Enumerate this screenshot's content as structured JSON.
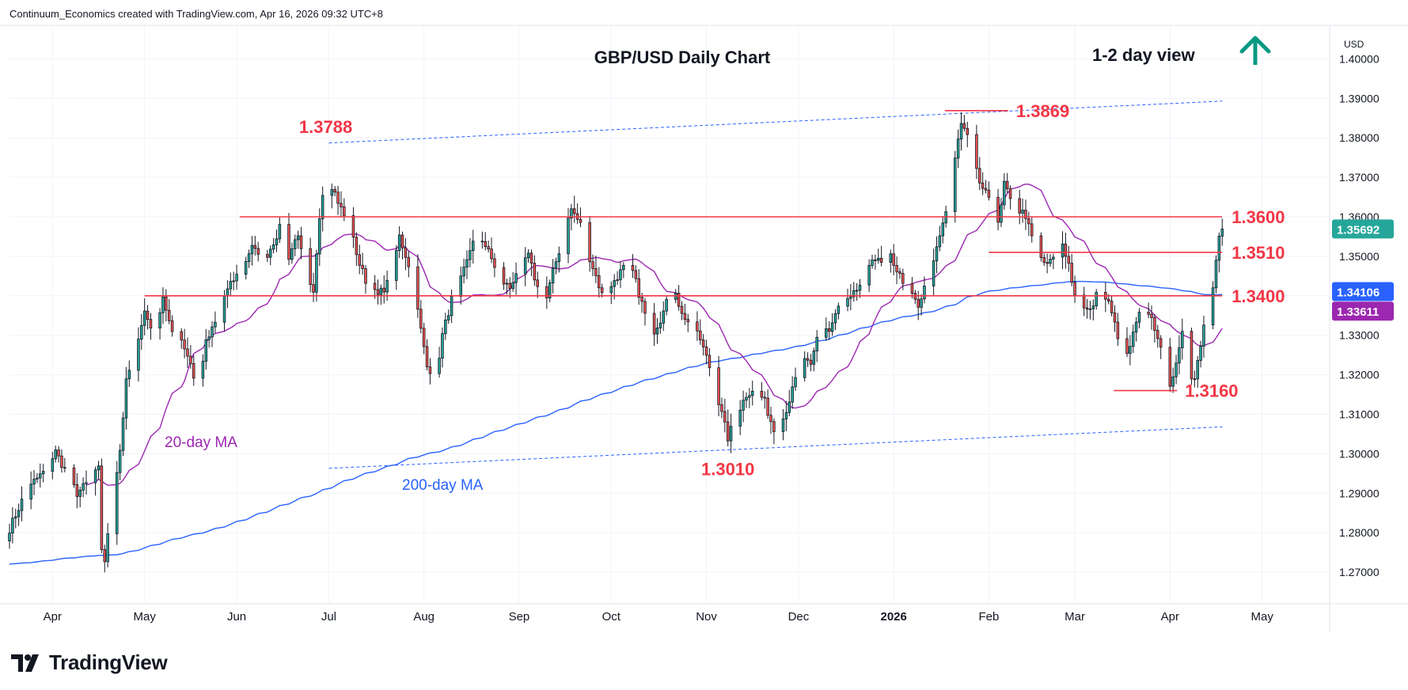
{
  "header": {
    "attribution": "Continuum_Economics created with TradingView.com, Apr 16, 2026 09:32 UTC+8"
  },
  "brand": {
    "name": "TradingView"
  },
  "chart_data": {
    "type": "candlestick",
    "title": "GBP/USD Daily Chart",
    "view_label": "1-2 day view",
    "view_direction": "up",
    "currency_label": "USD",
    "ylim": [
      1.262,
      1.4085
    ],
    "y_ticks": [
      "1.27000",
      "1.28000",
      "1.29000",
      "1.30000",
      "1.31000",
      "1.32000",
      "1.33000",
      "1.34000",
      "1.35000",
      "1.36000",
      "1.37000",
      "1.38000",
      "1.39000",
      "1.40000"
    ],
    "x_ticks": [
      "Apr",
      "May",
      "Jun",
      "Jul",
      "Aug",
      "Sep",
      "Oct",
      "Nov",
      "Dec",
      "2026",
      "Feb",
      "Mar",
      "Apr",
      "May"
    ],
    "x_tick_days": [
      14,
      44,
      74,
      104,
      135,
      166,
      196,
      227,
      257,
      288,
      319,
      347,
      378,
      408
    ],
    "x_range_days": [
      0,
      430
    ],
    "price_tags": [
      {
        "value": 1.35692,
        "label": "1.35692",
        "color": "#26a69a"
      },
      {
        "value": 1.34106,
        "label": "1.34106",
        "color": "#2962ff"
      },
      {
        "value": 1.33611,
        "label": "1.33611",
        "color": "#9c27b0"
      }
    ],
    "levels": [
      {
        "value": 1.36,
        "label": "1.3600",
        "from_day": 75,
        "to_day": 395
      },
      {
        "value": 1.351,
        "label": "1.3510",
        "from_day": 319,
        "to_day": 395
      },
      {
        "value": 1.34,
        "label": "1.3400",
        "from_day": 44,
        "to_day": 395
      }
    ],
    "extremes": [
      {
        "value": 1.3788,
        "label": "1.3788",
        "day": 103,
        "position": "above"
      },
      {
        "value": 1.3869,
        "label": "1.3869",
        "day": 315,
        "position": "right"
      },
      {
        "value": 1.301,
        "label": "1.3010",
        "day": 234,
        "position": "below"
      },
      {
        "value": 1.316,
        "label": "1.3160",
        "day": 370,
        "position": "right"
      }
    ],
    "channel": [
      {
        "from": [
          104,
          1.3787
        ],
        "to": [
          395,
          1.3893
        ]
      },
      {
        "from": [
          104,
          1.2963
        ],
        "to": [
          395,
          1.3068
        ]
      }
    ],
    "ma_labels": [
      {
        "name": "20-day MA",
        "color": "#9c27b0"
      },
      {
        "name": "200-day MA",
        "color": "#2962ff"
      }
    ],
    "anchors": [
      [
        0,
        1.281
      ],
      [
        4,
        1.288
      ],
      [
        8,
        1.293
      ],
      [
        12,
        1.296
      ],
      [
        15,
        1.3005
      ],
      [
        18,
        1.296
      ],
      [
        22,
        1.29
      ],
      [
        26,
        1.293
      ],
      [
        29,
        1.296
      ],
      [
        30,
        1.276
      ],
      [
        31,
        1.273
      ],
      [
        33,
        1.285
      ],
      [
        36,
        1.301
      ],
      [
        38,
        1.318
      ],
      [
        41,
        1.327
      ],
      [
        44,
        1.336
      ],
      [
        47,
        1.33
      ],
      [
        50,
        1.34
      ],
      [
        53,
        1.33
      ],
      [
        56,
        1.329
      ],
      [
        59,
        1.323
      ],
      [
        61,
        1.316
      ],
      [
        64,
        1.328
      ],
      [
        67,
        1.333
      ],
      [
        70,
        1.34
      ],
      [
        73,
        1.344
      ],
      [
        76,
        1.347
      ],
      [
        79,
        1.353
      ],
      [
        82,
        1.348
      ],
      [
        85,
        1.352
      ],
      [
        88,
        1.357
      ],
      [
        91,
        1.35
      ],
      [
        94,
        1.356
      ],
      [
        96,
        1.346
      ],
      [
        99,
        1.34
      ],
      [
        101,
        1.36
      ],
      [
        103,
        1.373
      ],
      [
        105,
        1.368
      ],
      [
        108,
        1.362
      ],
      [
        111,
        1.357
      ],
      [
        114,
        1.348
      ],
      [
        117,
        1.342
      ],
      [
        120,
        1.34
      ],
      [
        124,
        1.344
      ],
      [
        127,
        1.355
      ],
      [
        130,
        1.348
      ],
      [
        133,
        1.336
      ],
      [
        136,
        1.322
      ],
      [
        139,
        1.32
      ],
      [
        141,
        1.33
      ],
      [
        144,
        1.339
      ],
      [
        147,
        1.344
      ],
      [
        150,
        1.352
      ],
      [
        153,
        1.356
      ],
      [
        156,
        1.351
      ],
      [
        160,
        1.344
      ],
      [
        163,
        1.342
      ],
      [
        166,
        1.348
      ],
      [
        169,
        1.35
      ],
      [
        172,
        1.342
      ],
      [
        174,
        1.336
      ],
      [
        177,
        1.346
      ],
      [
        180,
        1.354
      ],
      [
        183,
        1.362
      ],
      [
        186,
        1.358
      ],
      [
        188,
        1.352
      ],
      [
        191,
        1.345
      ],
      [
        194,
        1.338
      ],
      [
        197,
        1.344
      ],
      [
        200,
        1.347
      ],
      [
        203,
        1.346
      ],
      [
        206,
        1.338
      ],
      [
        209,
        1.33
      ],
      [
        212,
        1.334
      ],
      [
        215,
        1.343
      ],
      [
        218,
        1.338
      ],
      [
        221,
        1.333
      ],
      [
        225,
        1.329
      ],
      [
        228,
        1.322
      ],
      [
        231,
        1.313
      ],
      [
        234,
        1.304
      ],
      [
        237,
        1.31
      ],
      [
        240,
        1.315
      ],
      [
        243,
        1.317
      ],
      [
        246,
        1.313
      ],
      [
        249,
        1.306
      ],
      [
        252,
        1.309
      ],
      [
        255,
        1.316
      ],
      [
        258,
        1.324
      ],
      [
        261,
        1.322
      ],
      [
        264,
        1.333
      ],
      [
        267,
        1.331
      ],
      [
        270,
        1.337
      ],
      [
        274,
        1.339
      ],
      [
        278,
        1.344
      ],
      [
        281,
        1.35
      ],
      [
        284,
        1.348
      ],
      [
        287,
        1.35
      ],
      [
        290,
        1.345
      ],
      [
        293,
        1.342
      ],
      [
        296,
        1.337
      ],
      [
        299,
        1.344
      ],
      [
        302,
        1.352
      ],
      [
        305,
        1.362
      ],
      [
        308,
        1.374
      ],
      [
        310,
        1.384
      ],
      [
        312,
        1.38
      ],
      [
        314,
        1.373
      ],
      [
        317,
        1.368
      ],
      [
        319,
        1.366
      ],
      [
        321,
        1.355
      ],
      [
        324,
        1.368
      ],
      [
        327,
        1.364
      ],
      [
        330,
        1.361
      ],
      [
        333,
        1.356
      ],
      [
        335,
        1.349
      ],
      [
        338,
        1.348
      ],
      [
        341,
        1.35
      ],
      [
        343,
        1.354
      ],
      [
        345,
        1.348
      ],
      [
        347,
        1.34
      ],
      [
        349,
        1.337
      ],
      [
        352,
        1.336
      ],
      [
        355,
        1.342
      ],
      [
        358,
        1.338
      ],
      [
        361,
        1.33
      ],
      [
        363,
        1.322
      ],
      [
        366,
        1.33
      ],
      [
        369,
        1.338
      ],
      [
        371,
        1.336
      ],
      [
        374,
        1.33
      ],
      [
        376,
        1.322
      ],
      [
        378,
        1.318
      ],
      [
        380,
        1.322
      ],
      [
        382,
        1.33
      ],
      [
        384,
        1.321
      ],
      [
        386,
        1.319
      ],
      [
        388,
        1.328
      ],
      [
        390,
        1.338
      ],
      [
        392,
        1.343
      ],
      [
        393,
        1.35
      ],
      [
        394,
        1.356
      ],
      [
        395,
        1.3569
      ]
    ]
  }
}
